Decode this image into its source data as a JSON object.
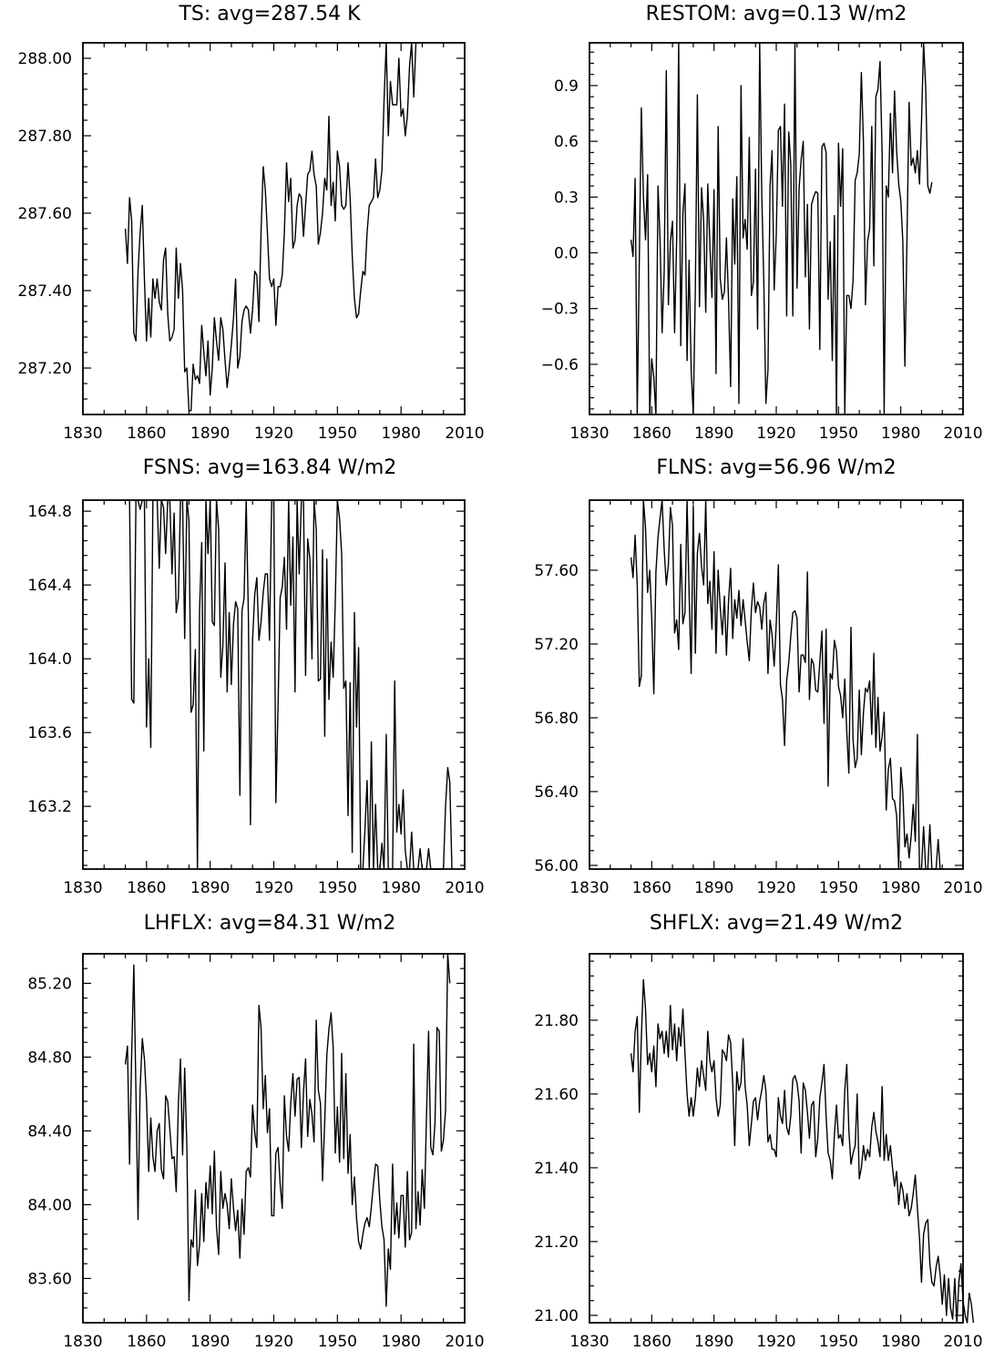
{
  "chart_data": [
    {
      "type": "line",
      "title": "TS: avg=287.54 K",
      "xlim": [
        1830,
        2010
      ],
      "ylim": [
        287.08,
        288.04
      ],
      "xticks": [
        1830,
        1860,
        1890,
        1920,
        1950,
        1980,
        2010
      ],
      "yticks": [
        287.2,
        287.4,
        287.6,
        287.8,
        288.0
      ],
      "ytick_labels": [
        "287.20",
        "287.40",
        "287.60",
        "287.80",
        "288.00"
      ],
      "x_start": 1850,
      "x_step": 1,
      "values": [
        287.56,
        287.47,
        287.64,
        287.58,
        287.29,
        287.27,
        287.45,
        287.55,
        287.62,
        287.43,
        287.27,
        287.38,
        287.28,
        287.43,
        287.38,
        287.43,
        287.37,
        287.35,
        287.48,
        287.51,
        287.34,
        287.27,
        287.28,
        287.3,
        287.51,
        287.38,
        287.47,
        287.4,
        287.19,
        287.2,
        287.09,
        287.09,
        287.21,
        287.17,
        287.18,
        287.16,
        287.31,
        287.24,
        287.18,
        287.27,
        287.13,
        287.2,
        287.33,
        287.27,
        287.22,
        287.33,
        287.3,
        287.22,
        287.15,
        287.2,
        287.26,
        287.33,
        287.43,
        287.2,
        287.23,
        287.32,
        287.35,
        287.36,
        287.35,
        287.29,
        287.35,
        287.45,
        287.44,
        287.32,
        287.55,
        287.72,
        287.66,
        287.55,
        287.43,
        287.41,
        287.43,
        287.31,
        287.41,
        287.41,
        287.44,
        287.55,
        287.73,
        287.63,
        287.69,
        287.51,
        287.53,
        287.62,
        287.65,
        287.64,
        287.54,
        287.62,
        287.7,
        287.71,
        287.76,
        287.7,
        287.67,
        287.52,
        287.55,
        287.6,
        287.69,
        287.66,
        287.85,
        287.62,
        287.68,
        287.58,
        287.76,
        287.72,
        287.62,
        287.61,
        287.62,
        287.73,
        287.64,
        287.49,
        287.38,
        287.33,
        287.34,
        287.4,
        287.45,
        287.44,
        287.55,
        287.62,
        287.63,
        287.64,
        287.74,
        287.64,
        287.66,
        287.71,
        287.89,
        288.04,
        287.8,
        287.94,
        287.88,
        287.88,
        287.88,
        288.0,
        287.85,
        287.87,
        287.8,
        287.85,
        287.98,
        288.04,
        287.9,
        288.04
      ]
    },
    {
      "type": "line",
      "title": "RESTOM: avg=0.13 W/m2",
      "xlim": [
        1830,
        2010
      ],
      "ylim": [
        -0.87,
        1.13
      ],
      "xticks": [
        1830,
        1860,
        1890,
        1920,
        1950,
        1980,
        2010
      ],
      "yticks": [
        -0.6,
        -0.3,
        0.0,
        0.3,
        0.6,
        0.9
      ],
      "ytick_labels": [
        "−0.6",
        "−0.3",
        "0.0",
        "0.3",
        "0.6",
        "0.9"
      ],
      "x_start": 1850,
      "x_step": 1,
      "values": [
        0.07,
        -0.02,
        0.4,
        -0.87,
        -0.04,
        0.78,
        0.3,
        0.07,
        0.42,
        -0.87,
        -0.57,
        -0.67,
        -0.87,
        0.36,
        0.08,
        -0.43,
        -0.1,
        0.98,
        -0.28,
        0.06,
        0.17,
        -0.43,
        0.08,
        1.13,
        -0.5,
        0.21,
        0.37,
        -0.58,
        -0.04,
        -0.63,
        -0.87,
        -0.19,
        0.85,
        -0.29,
        0.35,
        0.17,
        -0.32,
        0.37,
        0.05,
        -0.24,
        0.34,
        -0.65,
        0.68,
        -0.14,
        -0.25,
        -0.21,
        0.08,
        -0.25,
        -0.72,
        0.29,
        -0.06,
        0.41,
        -0.81,
        0.9,
        0.08,
        0.18,
        0.02,
        0.62,
        -0.23,
        -0.16,
        0.45,
        -0.41,
        1.13,
        0.31,
        -0.15,
        -0.81,
        -0.63,
        0.36,
        0.55,
        -0.2,
        0.1,
        0.66,
        0.68,
        0.25,
        0.8,
        -0.34,
        0.65,
        0.48,
        -0.34,
        1.13,
        -0.19,
        0.35,
        0.5,
        0.6,
        -0.13,
        0.26,
        -0.41,
        0.26,
        0.3,
        0.33,
        0.32,
        -0.52,
        0.57,
        0.59,
        0.54,
        -0.25,
        0.06,
        -0.58,
        0.2,
        -0.87,
        0.59,
        0.25,
        0.56,
        -0.87,
        -0.23,
        -0.23,
        -0.3,
        -0.15,
        0.39,
        0.43,
        0.53,
        0.97,
        0.59,
        -0.28,
        0.06,
        0.13,
        0.68,
        -0.07,
        0.84,
        0.88,
        1.03,
        0.53,
        -0.87,
        0.36,
        0.3,
        0.75,
        0.43,
        0.87,
        0.55,
        0.37,
        0.28,
        0.06,
        -0.61,
        0.09,
        0.81,
        0.47,
        0.51,
        0.43,
        0.55,
        0.37,
        0.7,
        1.13,
        0.89,
        0.36,
        0.32,
        0.38
      ]
    },
    {
      "type": "line",
      "title": "FSNS: avg=163.84 W/m2",
      "xlim": [
        1830,
        2010
      ],
      "ylim": [
        162.86,
        164.86
      ],
      "xticks": [
        1830,
        1860,
        1890,
        1920,
        1950,
        1980,
        2010
      ],
      "yticks": [
        163.2,
        163.6,
        164.0,
        164.4,
        164.8
      ],
      "ytick_labels": [
        "163.2",
        "163.6",
        "164.0",
        "164.4",
        "164.8"
      ],
      "x_start": 1850,
      "x_step": 1,
      "values": [
        164.86,
        164.86,
        164.86,
        163.78,
        163.76,
        164.86,
        164.86,
        164.81,
        164.86,
        164.86,
        163.63,
        164.0,
        163.52,
        164.86,
        164.86,
        164.86,
        164.49,
        164.86,
        164.82,
        164.57,
        164.86,
        164.86,
        164.46,
        164.79,
        164.25,
        164.33,
        164.86,
        164.86,
        164.11,
        164.86,
        164.75,
        163.71,
        163.75,
        164.05,
        162.86,
        164.26,
        164.63,
        163.5,
        164.86,
        164.57,
        164.86,
        164.2,
        164.18,
        164.86,
        164.7,
        163.9,
        164.07,
        164.52,
        163.82,
        164.25,
        163.86,
        164.19,
        164.31,
        164.27,
        163.26,
        164.26,
        164.33,
        164.86,
        164.24,
        163.1,
        164.1,
        164.35,
        164.44,
        164.1,
        164.2,
        164.36,
        164.46,
        164.46,
        164.1,
        164.86,
        164.86,
        163.22,
        163.75,
        164.33,
        164.39,
        164.55,
        164.16,
        164.86,
        164.29,
        164.66,
        163.82,
        164.86,
        164.46,
        164.86,
        164.86,
        163.91,
        164.65,
        164.54,
        164.0,
        164.86,
        164.7,
        163.88,
        163.89,
        164.59,
        163.58,
        164.54,
        163.78,
        164.09,
        163.9,
        164.31,
        164.86,
        164.76,
        164.57,
        163.84,
        163.88,
        163.15,
        163.87,
        162.95,
        164.25,
        163.63,
        164.06,
        162.86,
        162.86,
        163.08,
        163.34,
        162.86,
        163.55,
        162.86,
        163.21,
        162.86,
        162.86,
        163.0,
        162.86,
        163.59,
        162.86,
        162.86,
        162.86,
        163.88,
        163.06,
        163.21,
        163.05,
        163.29,
        162.96,
        162.86,
        162.86,
        163.06,
        162.86,
        162.86,
        162.86,
        162.97,
        162.86,
        162.86,
        162.86,
        162.97,
        162.86,
        162.86,
        162.86,
        162.86,
        162.86,
        162.86,
        162.86,
        163.2,
        163.41,
        163.33,
        162.86
      ]
    },
    {
      "type": "line",
      "title": "FLNS: avg=56.96 W/m2",
      "xlim": [
        1830,
        2010
      ],
      "ylim": [
        55.98,
        57.98
      ],
      "xticks": [
        1830,
        1860,
        1890,
        1920,
        1950,
        1980,
        2010
      ],
      "yticks": [
        56.0,
        56.4,
        56.8,
        57.2,
        57.6
      ],
      "ytick_labels": [
        "56.00",
        "56.40",
        "56.80",
        "57.20",
        "57.60"
      ],
      "x_start": 1850,
      "x_step": 1,
      "values": [
        57.67,
        57.56,
        57.79,
        57.52,
        56.97,
        57.03,
        57.98,
        57.83,
        57.48,
        57.6,
        57.34,
        56.93,
        57.59,
        57.78,
        57.88,
        57.98,
        57.71,
        57.52,
        57.63,
        57.94,
        57.84,
        57.26,
        57.33,
        57.17,
        57.74,
        57.31,
        57.37,
        57.98,
        57.48,
        57.04,
        57.95,
        57.15,
        57.69,
        57.8,
        57.62,
        57.52,
        57.98,
        57.42,
        57.54,
        57.28,
        57.7,
        57.15,
        57.6,
        57.4,
        57.25,
        57.46,
        57.14,
        57.43,
        57.61,
        57.23,
        57.44,
        57.34,
        57.49,
        57.3,
        57.44,
        57.33,
        57.21,
        57.11,
        57.39,
        57.53,
        57.37,
        57.43,
        57.4,
        57.28,
        57.42,
        57.48,
        57.04,
        57.33,
        57.25,
        57.08,
        57.31,
        57.63,
        56.98,
        56.9,
        56.65,
        57.0,
        57.1,
        57.24,
        57.37,
        57.38,
        57.34,
        56.94,
        57.14,
        57.14,
        57.1,
        57.59,
        56.9,
        57.12,
        57.09,
        56.95,
        56.94,
        57.1,
        57.27,
        56.77,
        57.28,
        56.43,
        57.04,
        57.01,
        57.22,
        57.16,
        56.97,
        56.92,
        56.8,
        57.01,
        56.72,
        56.5,
        57.29,
        56.68,
        56.53,
        56.58,
        56.95,
        56.6,
        56.83,
        56.96,
        56.94,
        57.0,
        56.71,
        57.15,
        56.64,
        56.91,
        56.62,
        56.7,
        56.83,
        56.3,
        56.52,
        56.58,
        56.36,
        56.35,
        56.27,
        55.98,
        56.53,
        56.4,
        56.1,
        56.17,
        56.04,
        56.16,
        56.33,
        56.13,
        56.71,
        55.98,
        55.98,
        56.21,
        55.98,
        55.98,
        56.22,
        55.98,
        55.98,
        55.98,
        56.14,
        55.98,
        55.98
      ]
    },
    {
      "type": "line",
      "title": "LHFLX: avg=84.31 W/m2",
      "xlim": [
        1830,
        2010
      ],
      "ylim": [
        83.36,
        85.36
      ],
      "xticks": [
        1830,
        1860,
        1890,
        1920,
        1950,
        1980,
        2010
      ],
      "yticks": [
        83.6,
        84.0,
        84.4,
        84.8,
        85.2
      ],
      "ytick_labels": [
        "83.60",
        "84.00",
        "84.40",
        "84.80",
        "85.20"
      ],
      "x_start": 1850,
      "x_step": 1,
      "values": [
        84.76,
        84.86,
        84.22,
        84.81,
        85.3,
        84.61,
        83.92,
        84.63,
        84.9,
        84.79,
        84.57,
        84.18,
        84.47,
        84.26,
        84.18,
        84.4,
        84.44,
        84.19,
        84.14,
        84.59,
        84.56,
        84.41,
        84.25,
        84.26,
        84.07,
        84.55,
        84.79,
        84.27,
        84.74,
        84.31,
        83.48,
        83.81,
        83.77,
        84.08,
        83.67,
        83.78,
        84.06,
        83.8,
        84.12,
        83.98,
        84.21,
        83.95,
        84.29,
        83.88,
        83.73,
        84.18,
        83.98,
        84.06,
        84.0,
        83.87,
        84.14,
        83.98,
        83.86,
        83.97,
        83.71,
        84.03,
        83.84,
        84.18,
        84.2,
        84.15,
        84.54,
        84.39,
        84.31,
        85.08,
        84.96,
        84.52,
        84.7,
        84.39,
        84.52,
        83.94,
        83.94,
        84.28,
        84.31,
        84.11,
        83.98,
        84.59,
        84.37,
        84.29,
        84.55,
        84.71,
        84.48,
        84.68,
        84.69,
        84.31,
        84.61,
        84.79,
        84.37,
        84.57,
        84.49,
        84.34,
        85.0,
        84.62,
        84.55,
        84.13,
        84.45,
        84.81,
        84.95,
        85.04,
        84.85,
        84.28,
        84.53,
        84.23,
        84.82,
        84.25,
        84.71,
        84.17,
        84.38,
        84.0,
        84.15,
        83.93,
        83.8,
        83.76,
        83.84,
        83.9,
        83.93,
        83.88,
        83.99,
        84.11,
        84.22,
        84.21,
        84.02,
        83.88,
        83.81,
        83.45,
        83.76,
        83.65,
        84.22,
        83.84,
        84.01,
        83.82,
        84.05,
        84.05,
        83.77,
        84.18,
        83.81,
        83.85,
        84.87,
        83.87,
        84.07,
        83.89,
        84.19,
        83.98,
        84.48,
        84.94,
        84.31,
        84.27,
        84.44,
        84.96,
        84.94,
        84.29,
        84.35,
        84.51,
        85.36,
        85.2
      ]
    },
    {
      "type": "line",
      "title": "SHFLX: avg=21.49 W/m2",
      "xlim": [
        1830,
        2010
      ],
      "ylim": [
        20.98,
        21.98
      ],
      "xticks": [
        1830,
        1860,
        1890,
        1920,
        1950,
        1980,
        2010
      ],
      "yticks": [
        21.0,
        21.2,
        21.4,
        21.6,
        21.8
      ],
      "ytick_labels": [
        "21.00",
        "21.20",
        "21.40",
        "21.60",
        "21.80"
      ],
      "x_start": 1850,
      "x_step": 1,
      "values": [
        21.71,
        21.66,
        21.77,
        21.81,
        21.55,
        21.75,
        21.91,
        21.83,
        21.68,
        21.71,
        21.66,
        21.73,
        21.62,
        21.79,
        21.75,
        21.77,
        21.71,
        21.77,
        21.7,
        21.84,
        21.72,
        21.79,
        21.69,
        21.78,
        21.73,
        21.83,
        21.71,
        21.6,
        21.54,
        21.59,
        21.54,
        21.59,
        21.67,
        21.62,
        21.69,
        21.65,
        21.61,
        21.77,
        21.69,
        21.66,
        21.69,
        21.59,
        21.54,
        21.57,
        21.72,
        21.71,
        21.69,
        21.76,
        21.74,
        21.63,
        21.46,
        21.66,
        21.61,
        21.63,
        21.75,
        21.62,
        21.57,
        21.46,
        21.52,
        21.58,
        21.59,
        21.53,
        21.58,
        21.61,
        21.65,
        21.61,
        21.47,
        21.49,
        21.45,
        21.45,
        21.43,
        21.59,
        21.54,
        21.52,
        21.61,
        21.51,
        21.49,
        21.54,
        21.64,
        21.65,
        21.63,
        21.58,
        21.44,
        21.63,
        21.61,
        21.55,
        21.48,
        21.57,
        21.58,
        21.43,
        21.48,
        21.59,
        21.63,
        21.68,
        21.54,
        21.44,
        21.42,
        21.37,
        21.49,
        21.57,
        21.48,
        21.49,
        21.46,
        21.61,
        21.68,
        21.5,
        21.41,
        21.44,
        21.46,
        21.6,
        21.37,
        21.4,
        21.46,
        21.42,
        21.45,
        21.43,
        21.51,
        21.55,
        21.5,
        21.47,
        21.43,
        21.62,
        21.42,
        21.49,
        21.42,
        21.46,
        21.4,
        21.35,
        21.39,
        21.3,
        21.36,
        21.34,
        21.29,
        21.33,
        21.27,
        21.29,
        21.33,
        21.38,
        21.29,
        21.21,
        21.09,
        21.22,
        21.25,
        21.26,
        21.14,
        21.09,
        21.08,
        21.13,
        21.16,
        21.11,
        21.03,
        21.11,
        21.0,
        21.1,
        21.02,
        20.99,
        21.1,
        20.98,
        21.09,
        21.14,
        21.04,
        21.0,
        20.98,
        21.06,
        21.03,
        20.98
      ]
    }
  ]
}
